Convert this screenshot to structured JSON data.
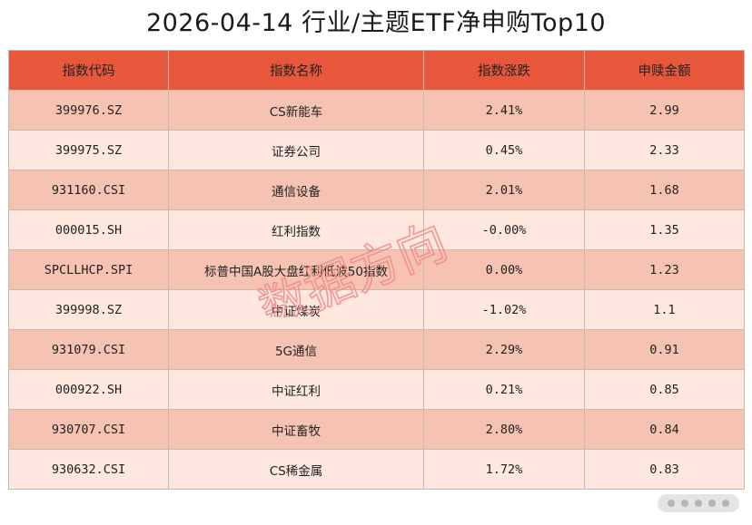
{
  "title": "2026-04-14 行业/主题ETF净申购Top10",
  "table": {
    "headers": [
      "指数代码",
      "指数名称",
      "指数涨跌",
      "申赎金额"
    ],
    "rows": [
      [
        "399976.SZ",
        "CS新能车",
        "2.41%",
        "2.99"
      ],
      [
        "399975.SZ",
        "证券公司",
        "0.45%",
        "2.33"
      ],
      [
        "931160.CSI",
        "通信设备",
        "2.01%",
        "1.68"
      ],
      [
        "000015.SH",
        "红利指数",
        "-0.00%",
        "1.35"
      ],
      [
        "SPCLLHCP.SPI",
        "标普中国A股大盘红利低波50指数",
        "0.00%",
        "1.23"
      ],
      [
        "399998.SZ",
        "中证煤炭",
        "-1.02%",
        "1.1"
      ],
      [
        "931079.CSI",
        "5G通信",
        "2.29%",
        "0.91"
      ],
      [
        "000922.SH",
        "中证红利",
        "0.21%",
        "0.85"
      ],
      [
        "930707.CSI",
        "中证畜牧",
        "2.80%",
        "0.84"
      ],
      [
        "930632.CSI",
        "CS稀金属",
        "1.72%",
        "0.83"
      ]
    ]
  },
  "watermark": "数据方向",
  "colors": {
    "header_bg": "#e8573c",
    "row_dark": "#f6c3b2",
    "row_light": "#fde7de",
    "watermark": "#f08a8a"
  }
}
